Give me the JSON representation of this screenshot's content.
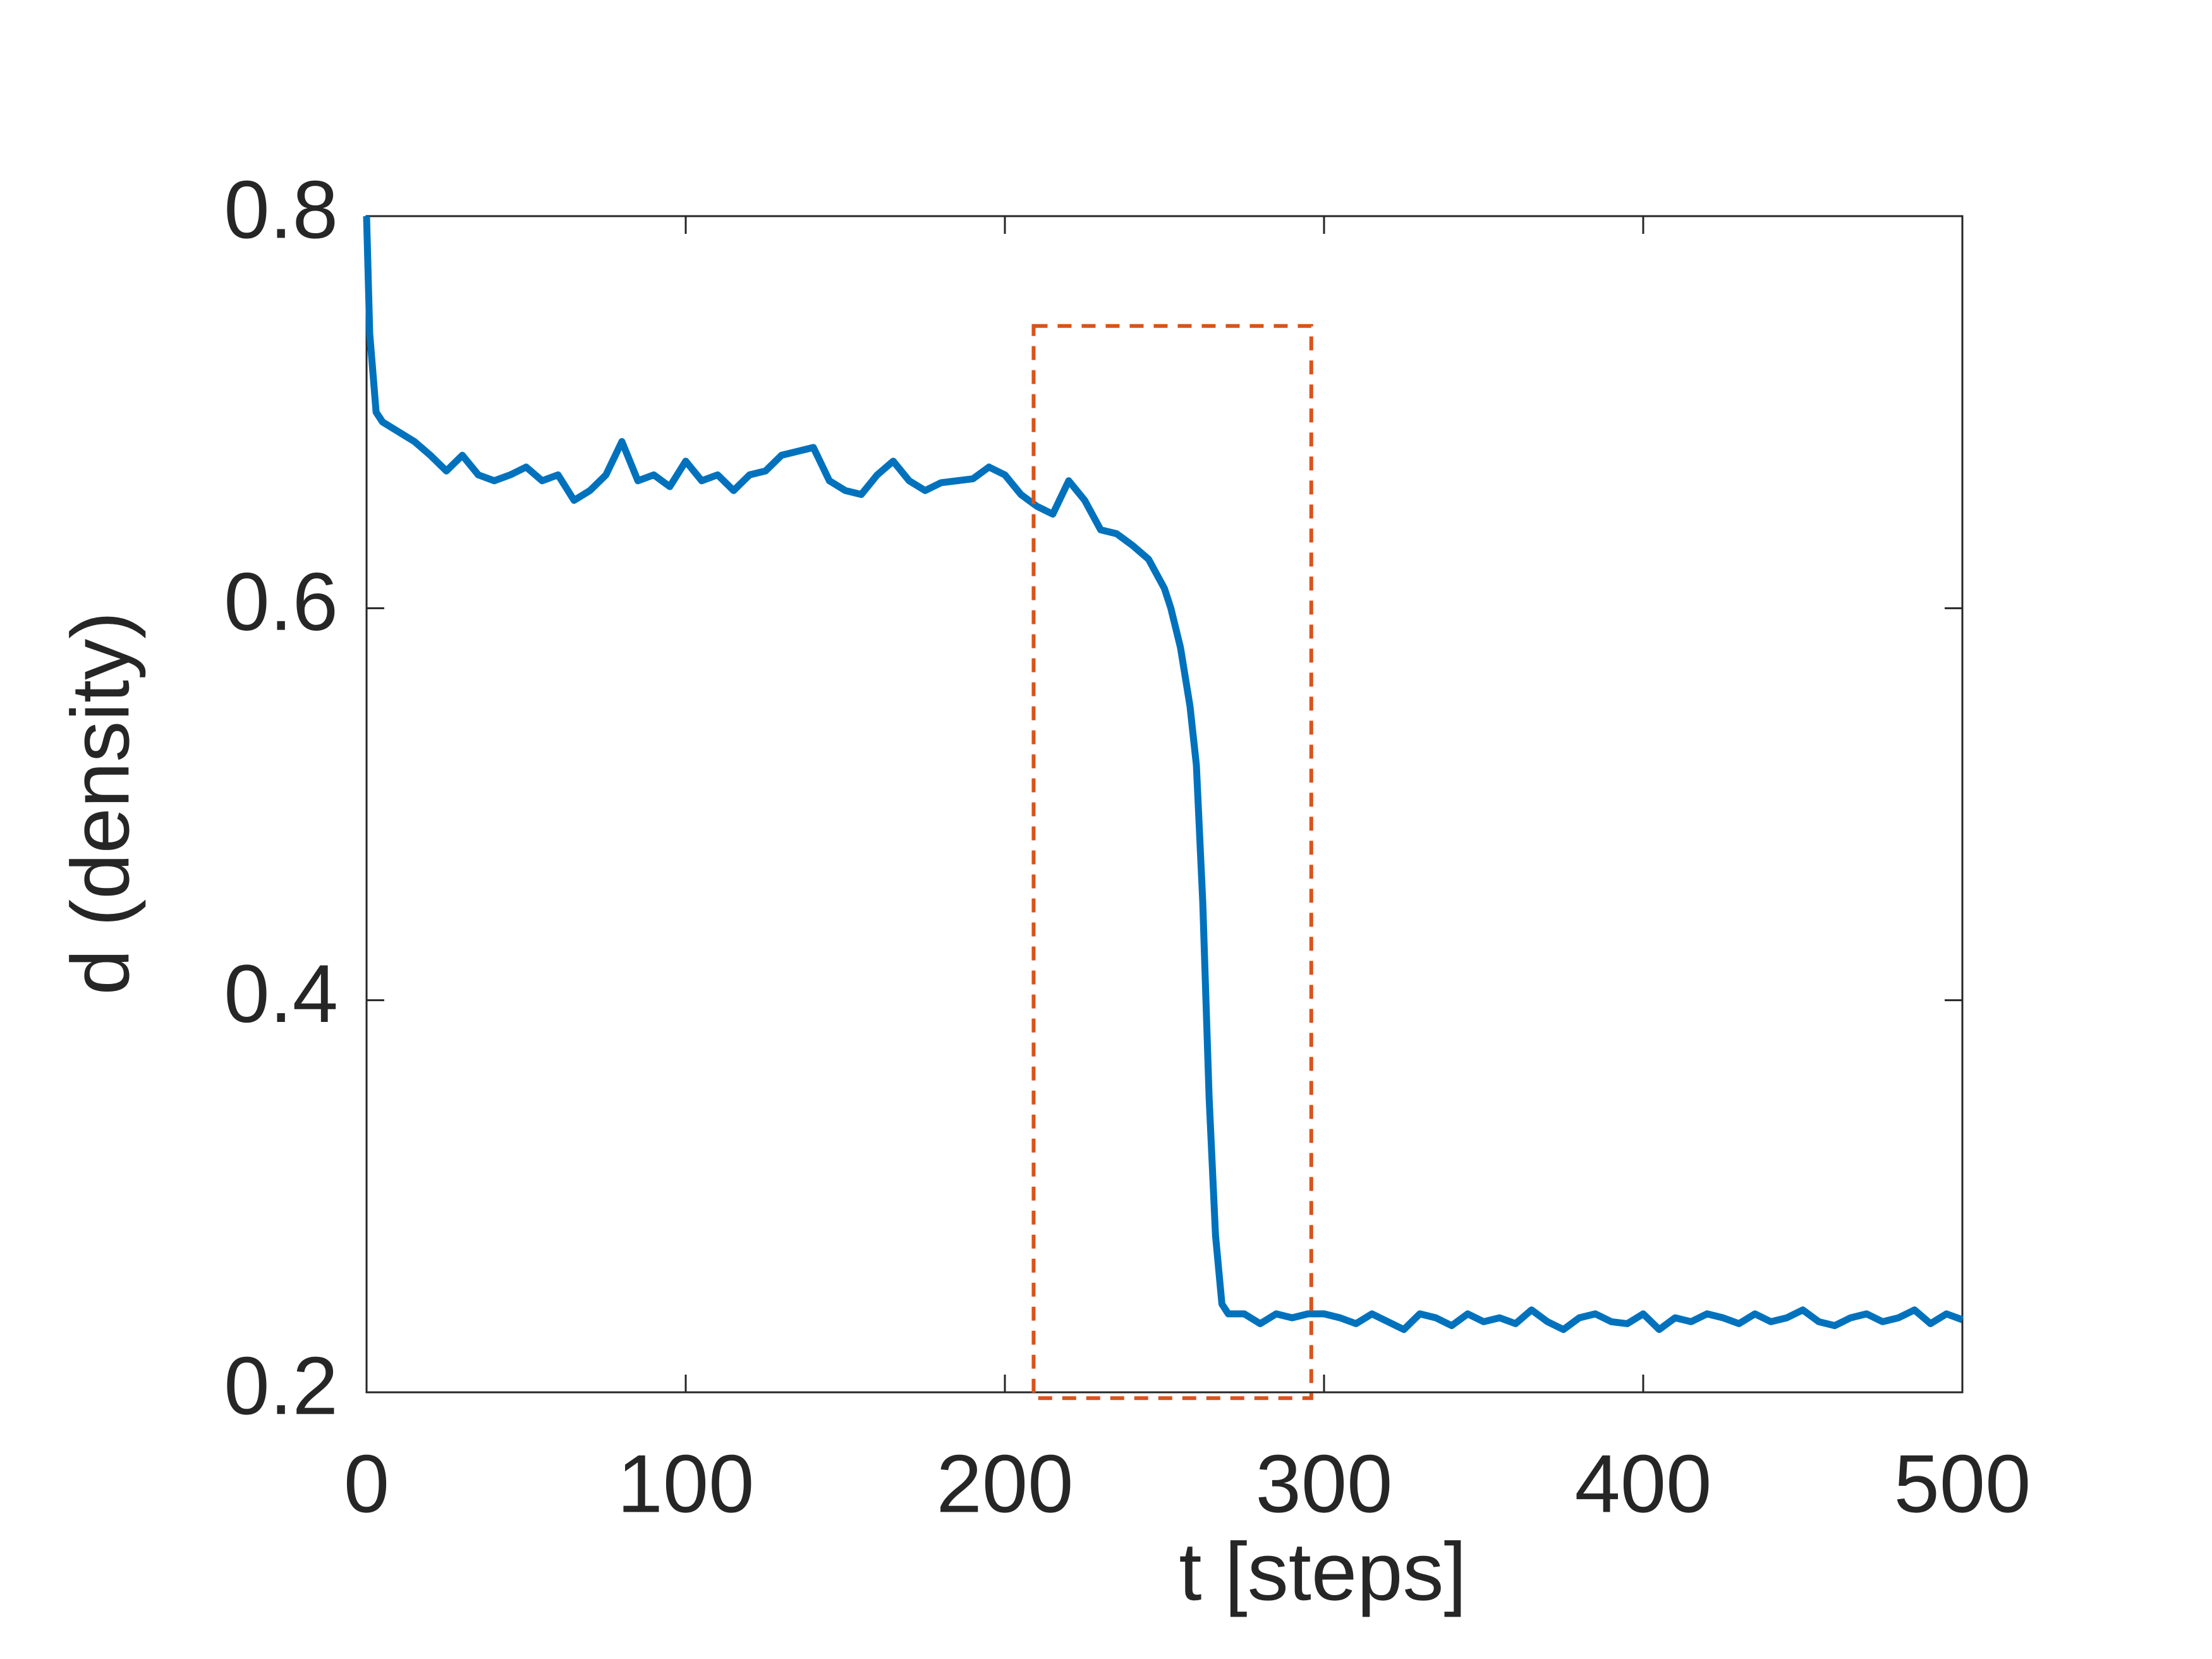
{
  "chart_data": {
    "type": "line",
    "xlabel": "t [steps]",
    "ylabel": "d (density)",
    "x": [
      0,
      1,
      2,
      3,
      5,
      10,
      15,
      20,
      25,
      30,
      35,
      40,
      45,
      50,
      55,
      60,
      65,
      70,
      75,
      80,
      85,
      90,
      95,
      100,
      105,
      110,
      115,
      120,
      125,
      130,
      135,
      140,
      145,
      150,
      155,
      160,
      165,
      170,
      175,
      180,
      185,
      190,
      195,
      200,
      205,
      210,
      215,
      220,
      225,
      230,
      235,
      240,
      245,
      250,
      252,
      255,
      258,
      260,
      262,
      264,
      266,
      268,
      270,
      275,
      280,
      285,
      290,
      295,
      300,
      305,
      310,
      315,
      320,
      325,
      330,
      335,
      340,
      345,
      350,
      355,
      360,
      365,
      370,
      375,
      380,
      385,
      390,
      395,
      400,
      405,
      410,
      415,
      420,
      425,
      430,
      435,
      440,
      445,
      450,
      455,
      460,
      465,
      470,
      475,
      480,
      485,
      490,
      495,
      500
    ],
    "series": [
      {
        "color": "#0072bd",
        "values": [
          0.8,
          0.74,
          0.72,
          0.7,
          0.695,
          0.69,
          0.685,
          0.678,
          0.67,
          0.678,
          0.668,
          0.665,
          0.668,
          0.672,
          0.665,
          0.668,
          0.655,
          0.66,
          0.668,
          0.685,
          0.665,
          0.668,
          0.662,
          0.675,
          0.665,
          0.668,
          0.66,
          0.668,
          0.67,
          0.678,
          0.68,
          0.682,
          0.665,
          0.66,
          0.658,
          0.668,
          0.675,
          0.665,
          0.66,
          0.664,
          0.665,
          0.666,
          0.672,
          0.668,
          0.658,
          0.652,
          0.648,
          0.665,
          0.655,
          0.64,
          0.638,
          0.632,
          0.625,
          0.61,
          0.6,
          0.58,
          0.55,
          0.52,
          0.45,
          0.35,
          0.28,
          0.245,
          0.24,
          0.24,
          0.235,
          0.24,
          0.238,
          0.24,
          0.24,
          0.238,
          0.235,
          0.24,
          0.236,
          0.232,
          0.24,
          0.238,
          0.234,
          0.24,
          0.236,
          0.238,
          0.235,
          0.242,
          0.236,
          0.232,
          0.238,
          0.24,
          0.236,
          0.235,
          0.24,
          0.232,
          0.238,
          0.236,
          0.24,
          0.238,
          0.235,
          0.24,
          0.236,
          0.238,
          0.242,
          0.236,
          0.234,
          0.238,
          0.24,
          0.236,
          0.238,
          0.242,
          0.235,
          0.24,
          0.237
        ]
      }
    ],
    "xlim": [
      0,
      500
    ],
    "ylim": [
      0.2,
      0.8
    ],
    "xticks": [
      0,
      100,
      200,
      300,
      400,
      500
    ],
    "yticks": [
      0.2,
      0.4,
      0.6,
      0.8
    ],
    "highlight_box": {
      "x": [
        209,
        296
      ],
      "y": [
        0.197,
        0.744
      ],
      "color": "#d95319"
    }
  }
}
